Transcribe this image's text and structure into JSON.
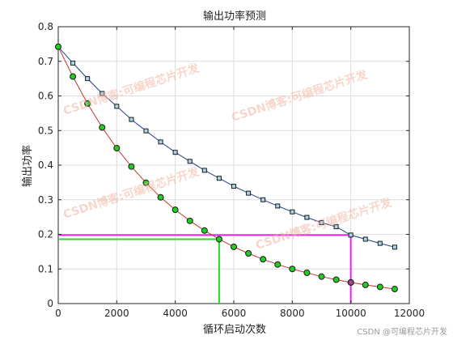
{
  "chart_data": {
    "type": "line",
    "title": "输出功率预测",
    "xlabel": "循环启动次数",
    "ylabel": "输出功率",
    "xlim": [
      0,
      12000
    ],
    "ylim": [
      0,
      0.8
    ],
    "xticks": [
      0,
      2000,
      4000,
      6000,
      8000,
      10000,
      12000
    ],
    "yticks": [
      0,
      0.1,
      0.2,
      0.3,
      0.4,
      0.5,
      0.6,
      0.7,
      0.8
    ],
    "xtick_labels": [
      "0",
      "2000",
      "4000",
      "6000",
      "8000",
      "10000",
      "12000"
    ],
    "ytick_labels": [
      "0",
      "0.1",
      "0.2",
      "0.3",
      "0.4",
      "0.5",
      "0.6",
      "0.7",
      "0.8"
    ],
    "grid": true,
    "series": [
      {
        "color": "#1f3f8f",
        "marker": "square",
        "marker_fill": "#a8d8e8",
        "x": [
          0,
          500,
          1000,
          1500,
          2000,
          2500,
          3000,
          3500,
          4000,
          4500,
          5000,
          5500,
          6000,
          6500,
          7000,
          7500,
          8000,
          8500,
          9000,
          9500,
          10000,
          10500,
          11000,
          11500
        ],
        "y": [
          0.742,
          0.695,
          0.65,
          0.607,
          0.57,
          0.532,
          0.499,
          0.467,
          0.437,
          0.411,
          0.385,
          0.362,
          0.339,
          0.319,
          0.3,
          0.282,
          0.265,
          0.249,
          0.234,
          0.222,
          0.198,
          0.186,
          0.174,
          0.163
        ]
      },
      {
        "color": "#c0392b",
        "marker": "circle",
        "marker_fill": "#22cc22",
        "x": [
          0,
          500,
          1000,
          1500,
          2000,
          2500,
          3000,
          3500,
          4000,
          4500,
          5000,
          5500,
          6000,
          6500,
          7000,
          7500,
          8000,
          8500,
          9000,
          9500,
          10000,
          10500,
          11000,
          11500
        ],
        "y": [
          0.742,
          0.656,
          0.578,
          0.509,
          0.449,
          0.396,
          0.349,
          0.307,
          0.271,
          0.239,
          0.211,
          0.186,
          0.164,
          0.145,
          0.128,
          0.113,
          0.1,
          0.089,
          0.078,
          0.069,
          0.061,
          0.054,
          0.048,
          0.042
        ]
      }
    ],
    "guides": [
      {
        "color": "#22dd22",
        "x": 5500,
        "y": 0.186
      },
      {
        "color": "#ee22ee",
        "x": 10000,
        "y": 0.198
      }
    ],
    "highlight_point": {
      "x": 10000,
      "y": 0.061,
      "fill": "#9a4a8a"
    }
  },
  "watermarks": [
    "CSDN博客:可编程芯片开发",
    "CSDN博客:可编程芯片开发",
    "CSDN博客:可编程芯片开发",
    "CSDN博客:可编程芯片开发"
  ],
  "footer_text": "CSDN @可编程芯片开发"
}
